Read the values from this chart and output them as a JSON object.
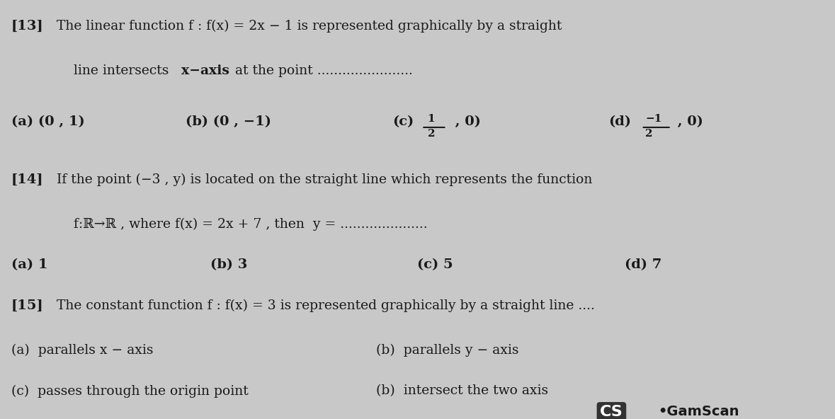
{
  "bg_color": "#c8c8c8",
  "text_color": "#1a1a1a",
  "fig_width": 11.79,
  "fig_height": 5.92,
  "questions": [
    {
      "number": "[13]",
      "lines": [
        "The linear function f : f(x) = 2x − 1 is represented graphically by a straight",
        "line intersects x−axis at the point ....................."
      ],
      "choices": [
        "(a) (0 , 1)",
        "(b) (0 , −1)",
        "(c) (1/2 , 0)",
        "(d) (−1/2 , 0)"
      ]
    },
    {
      "number": "[14]",
      "lines": [
        "If the point (−3 , y) is located on the straight line which represents the function",
        "f:ℝ→ℝ , where f(x) = 2x + 7 , then  y = ....................."
      ],
      "choices": [
        "(a) 1",
        "(b) 3",
        "(c) 5",
        "(d) 7"
      ]
    },
    {
      "number": "[15]",
      "lines": [
        "The constant function f : f(x) = 3 is represented graphically by a straight line ...."
      ],
      "choices_2col": [
        [
          "(a)  parallels x − axis",
          "(b)  parallels y − axis"
        ],
        [
          "(c)  passes through the origin point",
          "(b)  intersect the two axis"
        ]
      ]
    }
  ],
  "watermark": "CS•GamScan",
  "watermark_color": "#222222"
}
